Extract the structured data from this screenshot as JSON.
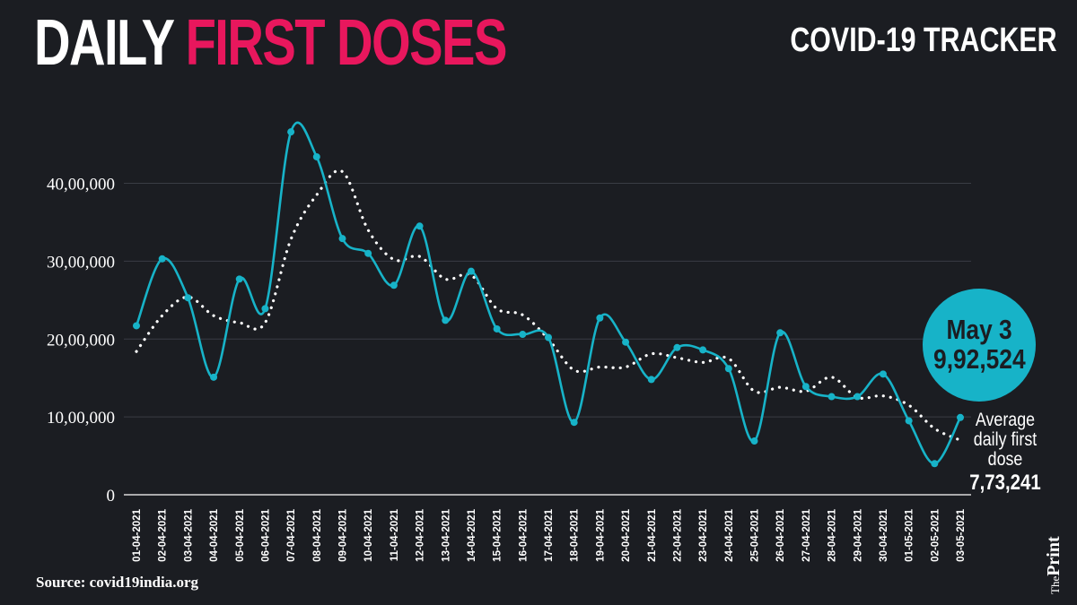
{
  "header": {
    "title_part1": "DAILY",
    "title_part2": "FIRST DOSES",
    "tracker": "COVID-19 TRACKER"
  },
  "callout": {
    "date": "May 3",
    "value": "9,92,524"
  },
  "average": {
    "label": "Average daily first dose",
    "value": "7,73,241"
  },
  "footer": {
    "source": "Source: covid19india.org",
    "logo_prefix": "The",
    "logo_main": "Print"
  },
  "colors": {
    "background": "#1b1d22",
    "title_accent": "#e8175d",
    "daily_line": "#17b3c8",
    "average_line": "#ffffff",
    "grid": "#3a3d44"
  },
  "chart_data": {
    "type": "line",
    "x": [
      "01-04-2021",
      "02-04-2021",
      "03-04-2021",
      "04-04-2021",
      "05-04-2021",
      "06-04-2021",
      "07-04-2021",
      "08-04-2021",
      "09-04-2021",
      "10-04-2021",
      "11-04-2021",
      "12-04-2021",
      "13-04-2021",
      "14-04-2021",
      "15-04-2021",
      "16-04-2021",
      "17-04-2021",
      "18-04-2021",
      "19-04-2021",
      "20-04-2021",
      "21-04-2021",
      "22-04-2021",
      "23-04-2021",
      "24-04-2021",
      "25-04-2021",
      "26-04-2021",
      "27-04-2021",
      "28-04-2021",
      "29-04-2021",
      "30-04-2021",
      "01-05-2021",
      "02-05-2021",
      "03-05-2021"
    ],
    "yticks": [
      0,
      1000000,
      2000000,
      3000000,
      4000000
    ],
    "ytick_labels": [
      "0",
      "10,00,000",
      "20,00,000",
      "30,00,000",
      "40,00,000"
    ],
    "ylim": [
      0,
      4800000
    ],
    "grid": true,
    "series": [
      {
        "style": "solid",
        "markers": true,
        "values": [
          2170000,
          3030000,
          2530000,
          1510000,
          2770000,
          2390000,
          4660000,
          4340000,
          3290000,
          3100000,
          2690000,
          3450000,
          2240000,
          2870000,
          2130000,
          2060000,
          2020000,
          930000,
          2270000,
          1960000,
          1480000,
          1890000,
          1860000,
          1620000,
          690000,
          2080000,
          1390000,
          1260000,
          1260000,
          1550000,
          950000,
          400000,
          992524
        ]
      },
      {
        "style": "dotted",
        "markers": false,
        "values": [
          1840000,
          2300000,
          2540000,
          2300000,
          2210000,
          2210000,
          3280000,
          3850000,
          4150000,
          3400000,
          3020000,
          3060000,
          2770000,
          2820000,
          2390000,
          2310000,
          2000000,
          1600000,
          1640000,
          1640000,
          1810000,
          1760000,
          1700000,
          1750000,
          1330000,
          1380000,
          1330000,
          1510000,
          1250000,
          1270000,
          1150000,
          850000,
          700000
        ]
      }
    ]
  }
}
